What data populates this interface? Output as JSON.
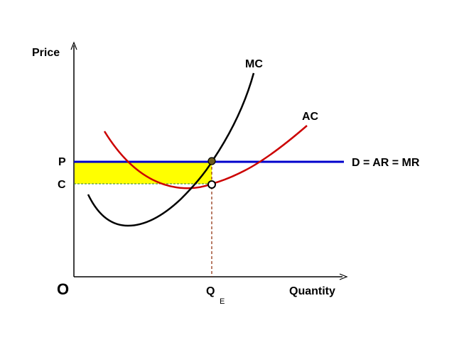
{
  "diagram": {
    "y_axis_label": "Price",
    "x_axis_label": "Quantity",
    "origin_label": "O",
    "price_label": "P",
    "cost_label": "C",
    "quantity_label": "Q",
    "quantity_subscript": "E",
    "mc_label": "MC",
    "ac_label": "AC",
    "demand_label": "D = AR = MR"
  },
  "colors": {
    "demand_line": "#0000cc",
    "mc_curve": "#000000",
    "ac_curve": "#cc0000",
    "profit_area": "#ffff00",
    "guide_line": "#8b2500",
    "axes": "#000000"
  }
}
